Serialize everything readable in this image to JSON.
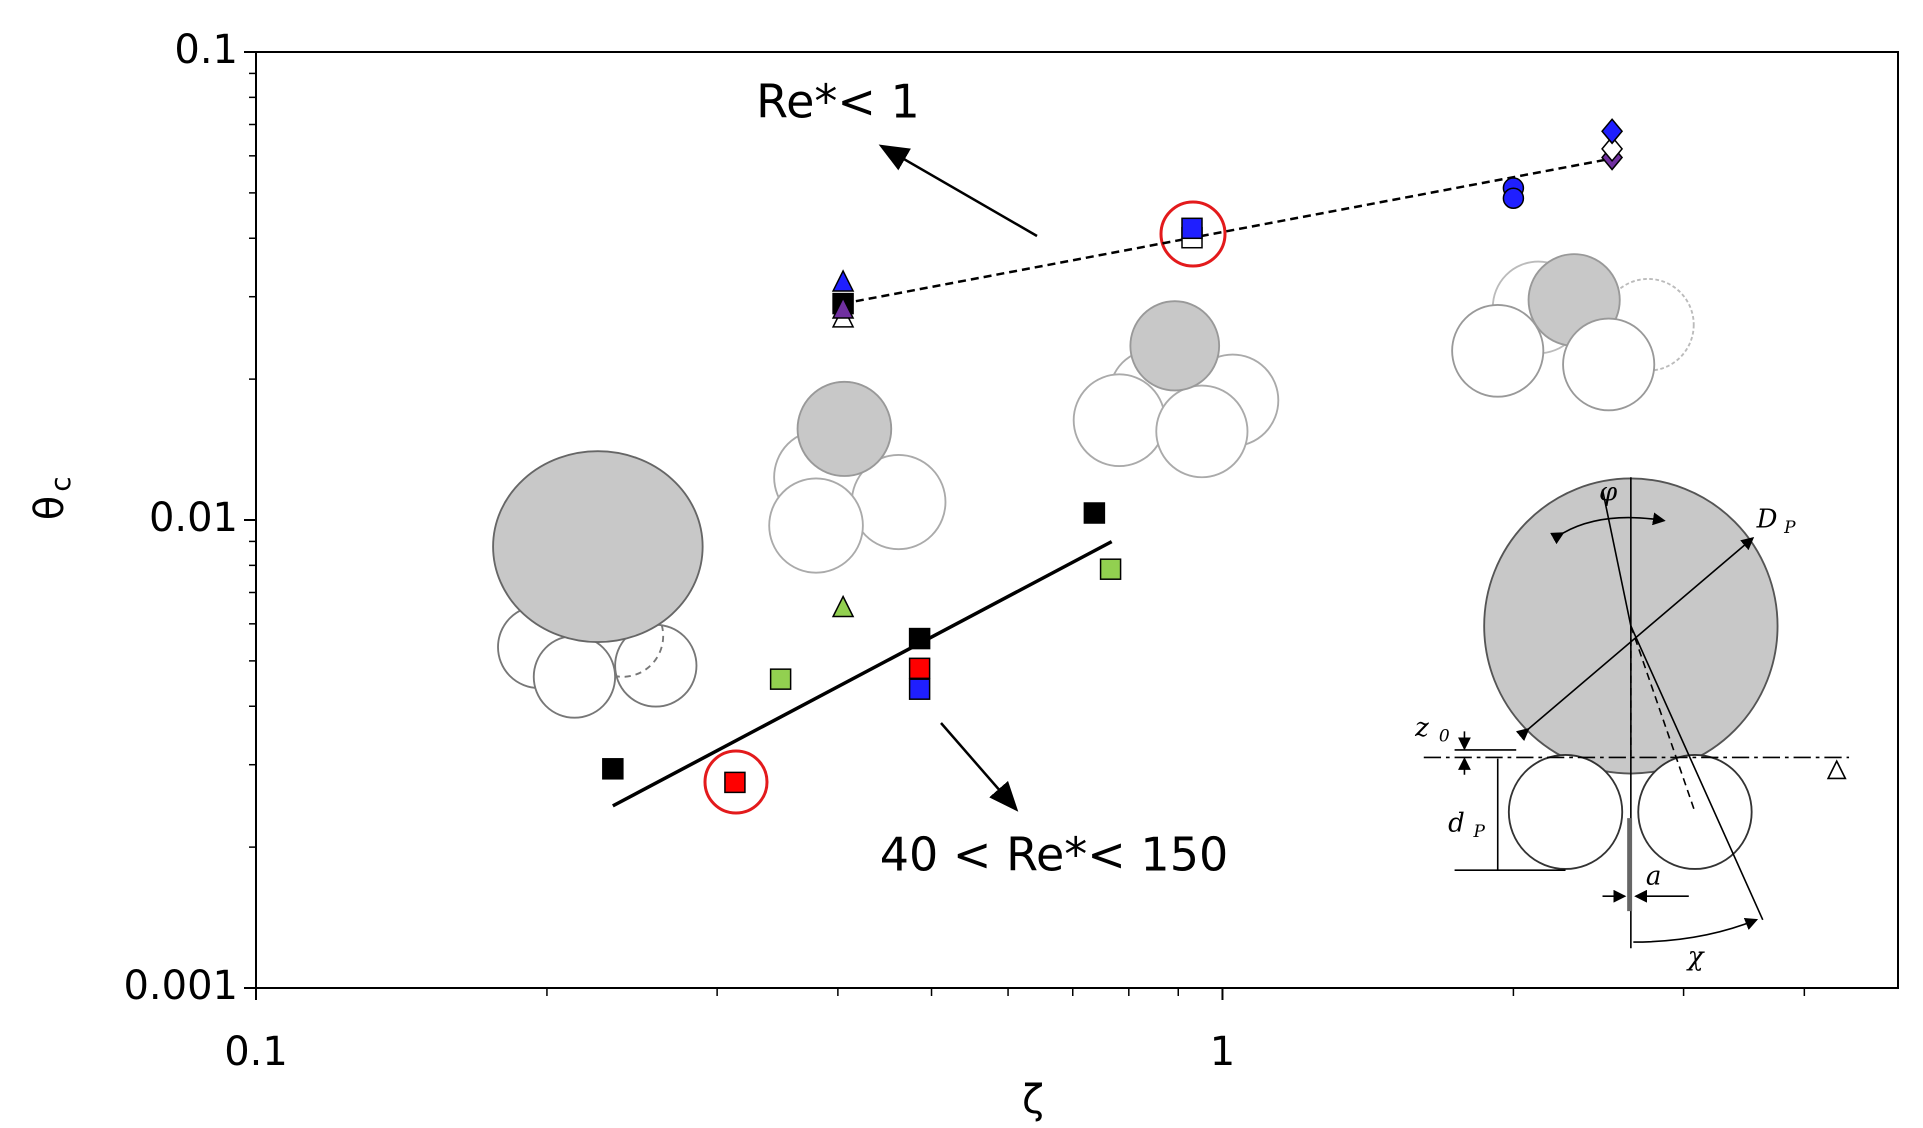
{
  "chart_data": {
    "type": "scatter",
    "xlabel": "ζ",
    "ylabel": "θ",
    "ylabel_subscript": "c",
    "xscale": "log",
    "yscale": "log",
    "xlim": [
      0.1,
      5
    ],
    "ylim": [
      0.001,
      0.1
    ],
    "xticks": [
      0.1,
      1
    ],
    "yticks": [
      0.001,
      0.01,
      0.1
    ],
    "xminorticks": [
      0.2,
      0.3,
      0.4,
      0.5,
      0.6,
      0.7,
      0.8,
      0.9,
      2,
      3,
      4
    ],
    "yminorticks": [
      0.002,
      0.003,
      0.004,
      0.005,
      0.006,
      0.007,
      0.008,
      0.009,
      0.02,
      0.03,
      0.04,
      0.05,
      0.06,
      0.07,
      0.08,
      0.09
    ],
    "series": [
      {
        "marker": "square",
        "color": "#000000",
        "x": [
          0.234,
          0.486,
          0.737,
          0.405
        ],
        "values": [
          0.00294,
          0.00558,
          0.01035,
          0.029
        ]
      },
      {
        "marker": "square",
        "color": "#ff0000",
        "x": [
          0.313,
          0.486
        ],
        "values": [
          0.00275,
          0.00482
        ]
      },
      {
        "marker": "square",
        "color": "#92d050",
        "x": [
          0.349,
          0.766
        ],
        "values": [
          0.00457,
          0.00785
        ]
      },
      {
        "marker": "triangle",
        "color": "#92d050",
        "x": [
          0.405
        ],
        "values": [
          0.00647
        ]
      },
      {
        "marker": "square",
        "color": "#ffffff",
        "x": [
          0.93
        ],
        "values": [
          0.0401
        ]
      },
      {
        "marker": "square",
        "color": "#1f1fff",
        "x": [
          0.486,
          0.93
        ],
        "values": [
          0.00435,
          0.042
        ]
      },
      {
        "marker": "triangle",
        "color": "#ffffff",
        "x": [
          0.405
        ],
        "values": [
          0.0269
        ]
      },
      {
        "marker": "triangle",
        "color": "#7030a0",
        "x": [
          0.405
        ],
        "values": [
          0.0281
        ]
      },
      {
        "marker": "triangle",
        "color": "#1f1fff",
        "x": [
          0.405
        ],
        "values": [
          0.0321
        ]
      },
      {
        "marker": "circle",
        "color": "#1f1fff",
        "x": [
          2.0,
          2.0
        ],
        "values": [
          0.0512,
          0.0487
        ]
      },
      {
        "marker": "diamond",
        "color": "#7030a0",
        "x": [
          2.53
        ],
        "values": [
          0.0595
        ]
      },
      {
        "marker": "diamond",
        "color": "#ffffff",
        "x": [
          2.53
        ],
        "values": [
          0.0621
        ]
      },
      {
        "marker": "diamond",
        "color": "#1f1fff",
        "x": [
          2.53
        ],
        "values": [
          0.0677
        ]
      }
    ],
    "fits": [
      {
        "style": "solid",
        "x": [
          0.234,
          0.768
        ],
        "values": [
          0.00245,
          0.00899
        ]
      },
      {
        "style": "dashed",
        "x": [
          0.405,
          2.53
        ],
        "values": [
          0.029,
          0.0592
        ]
      }
    ],
    "annotations": [
      "Re*< 1",
      "40 < Re*< 150"
    ],
    "diagram_labels": [
      {
        "text": "φ"
      },
      {
        "text": "D",
        "sub": "P"
      },
      {
        "text": "z",
        "sub": "0"
      },
      {
        "text": "d",
        "sub": "P"
      },
      {
        "text": "a"
      },
      {
        "text": "χ"
      }
    ]
  }
}
